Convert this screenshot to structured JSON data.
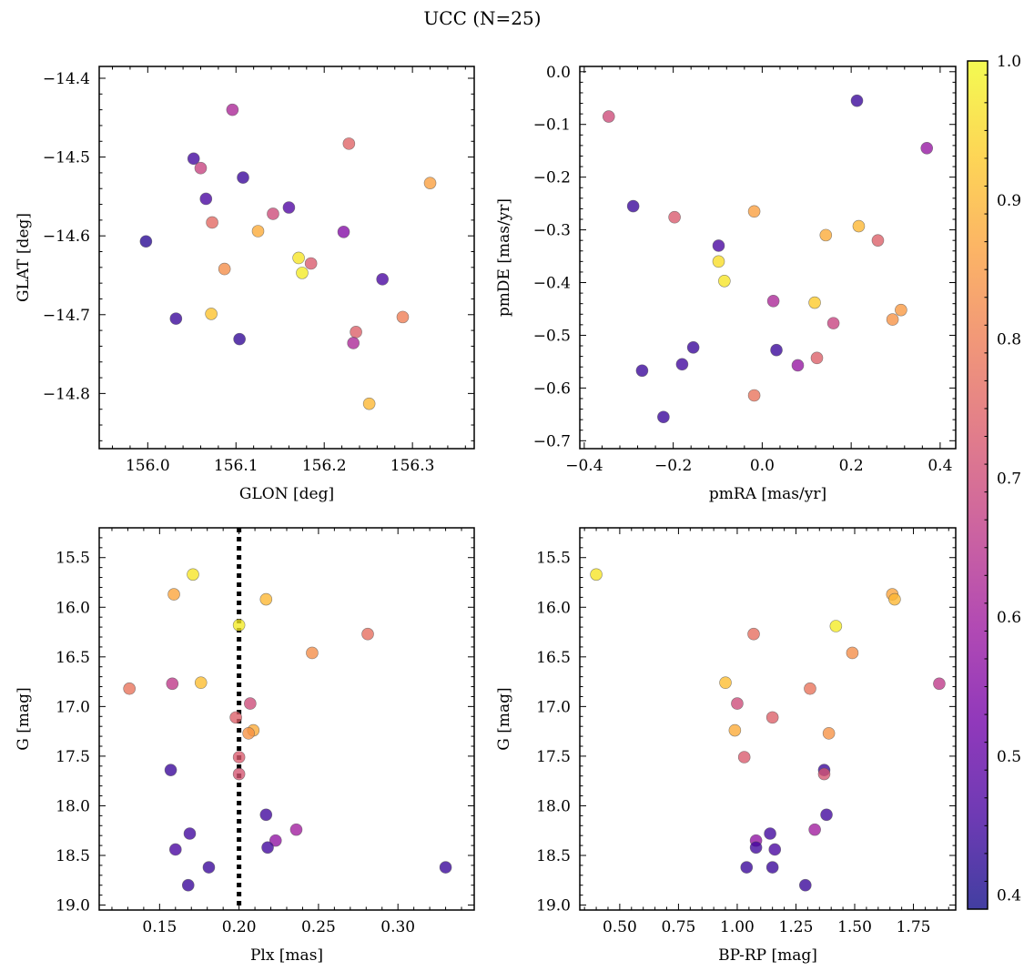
{
  "figure_title": "UCC (N=25)",
  "colormap": {
    "name": "plasma",
    "stops": [
      "#0d0887",
      "#46039f",
      "#7201a8",
      "#9c179e",
      "#bd3786",
      "#d8576b",
      "#ed7953",
      "#fb9f3a",
      "#fdca26",
      "#f0f921"
    ],
    "point_alpha": 0.78,
    "point_edge_color": "#555555"
  },
  "colorbar": {
    "range": [
      0.39,
      1.0
    ],
    "ticks": [
      0.4,
      0.5,
      0.6,
      0.7,
      0.8,
      0.9,
      1.0
    ],
    "tick_labels": [
      "0.4",
      "0.5",
      "0.6",
      "0.7",
      "0.8",
      "0.9",
      "1.0"
    ]
  },
  "chart_data": [
    {
      "type": "scatter",
      "id": "glon-glat",
      "xlabel": "GLON [deg]",
      "ylabel": "GLAT [deg]",
      "xlim": [
        155.945,
        156.37
      ],
      "ylim": [
        -14.87,
        -14.385
      ],
      "xticks": [
        156.0,
        156.1,
        156.2,
        156.3
      ],
      "xtick_labels": [
        "156.0",
        "156.1",
        "156.2",
        "156.3"
      ],
      "yticks": [
        -14.4,
        -14.5,
        -14.6,
        -14.7,
        -14.8
      ],
      "ytick_labels": [
        "−14.4",
        "−14.5",
        "−14.6",
        "−14.7",
        "−14.8"
      ],
      "points": [
        {
          "x": 156.096,
          "y": -14.44,
          "c": 0.62
        },
        {
          "x": 156.228,
          "y": -14.483,
          "c": 0.75
        },
        {
          "x": 156.052,
          "y": -14.502,
          "c": 0.45
        },
        {
          "x": 156.06,
          "y": -14.514,
          "c": 0.68
        },
        {
          "x": 156.108,
          "y": -14.526,
          "c": 0.44
        },
        {
          "x": 156.32,
          "y": -14.533,
          "c": 0.86
        },
        {
          "x": 156.066,
          "y": -14.553,
          "c": 0.46
        },
        {
          "x": 156.16,
          "y": -14.564,
          "c": 0.47
        },
        {
          "x": 156.142,
          "y": -14.572,
          "c": 0.7
        },
        {
          "x": 156.073,
          "y": -14.583,
          "c": 0.76
        },
        {
          "x": 156.125,
          "y": -14.594,
          "c": 0.88
        },
        {
          "x": 156.222,
          "y": -14.595,
          "c": 0.55
        },
        {
          "x": 155.998,
          "y": -14.607,
          "c": 0.42
        },
        {
          "x": 156.171,
          "y": -14.628,
          "c": 0.97
        },
        {
          "x": 156.185,
          "y": -14.635,
          "c": 0.73
        },
        {
          "x": 156.087,
          "y": -14.642,
          "c": 0.83
        },
        {
          "x": 156.175,
          "y": -14.647,
          "c": 0.98
        },
        {
          "x": 156.266,
          "y": -14.655,
          "c": 0.46
        },
        {
          "x": 156.072,
          "y": -14.699,
          "c": 0.92
        },
        {
          "x": 156.289,
          "y": -14.703,
          "c": 0.8
        },
        {
          "x": 156.032,
          "y": -14.705,
          "c": 0.44
        },
        {
          "x": 156.236,
          "y": -14.722,
          "c": 0.74
        },
        {
          "x": 156.104,
          "y": -14.731,
          "c": 0.43
        },
        {
          "x": 156.233,
          "y": -14.736,
          "c": 0.62
        },
        {
          "x": 156.251,
          "y": -14.813,
          "c": 0.9
        }
      ]
    },
    {
      "type": "scatter",
      "id": "pmra-pmde",
      "xlabel": "pmRA [mas/yr]",
      "ylabel": "pmDE [mas/yr]",
      "xlim": [
        -0.41,
        0.435
      ],
      "ylim": [
        -0.715,
        0.01
      ],
      "xticks": [
        -0.4,
        -0.2,
        0.0,
        0.2,
        0.4
      ],
      "xtick_labels": [
        "−0.4",
        "−0.2",
        "0.0",
        "0.2",
        "0.4"
      ],
      "yticks": [
        0.0,
        -0.1,
        -0.2,
        -0.3,
        -0.4,
        -0.5,
        -0.6,
        -0.7
      ],
      "ytick_labels": [
        "0.0",
        "−0.1",
        "−0.2",
        "−0.3",
        "−0.4",
        "−0.5",
        "−0.6",
        "−0.7"
      ],
      "points": [
        {
          "x": 0.213,
          "y": -0.055,
          "c": 0.44
        },
        {
          "x": -0.345,
          "y": -0.085,
          "c": 0.7
        },
        {
          "x": 0.37,
          "y": -0.145,
          "c": 0.58
        },
        {
          "x": -0.29,
          "y": -0.255,
          "c": 0.44
        },
        {
          "x": -0.018,
          "y": -0.265,
          "c": 0.86
        },
        {
          "x": -0.197,
          "y": -0.276,
          "c": 0.73
        },
        {
          "x": 0.217,
          "y": -0.293,
          "c": 0.9
        },
        {
          "x": 0.143,
          "y": -0.31,
          "c": 0.88
        },
        {
          "x": 0.26,
          "y": -0.32,
          "c": 0.74
        },
        {
          "x": -0.098,
          "y": -0.33,
          "c": 0.46
        },
        {
          "x": -0.098,
          "y": -0.36,
          "c": 0.96
        },
        {
          "x": -0.085,
          "y": -0.397,
          "c": 0.97
        },
        {
          "x": 0.025,
          "y": -0.435,
          "c": 0.62
        },
        {
          "x": 0.118,
          "y": -0.438,
          "c": 0.93
        },
        {
          "x": 0.312,
          "y": -0.452,
          "c": 0.85
        },
        {
          "x": 0.293,
          "y": -0.47,
          "c": 0.84
        },
        {
          "x": 0.16,
          "y": -0.477,
          "c": 0.68
        },
        {
          "x": -0.155,
          "y": -0.523,
          "c": 0.44
        },
        {
          "x": 0.032,
          "y": -0.528,
          "c": 0.44
        },
        {
          "x": 0.123,
          "y": -0.543,
          "c": 0.74
        },
        {
          "x": -0.18,
          "y": -0.555,
          "c": 0.45
        },
        {
          "x": 0.08,
          "y": -0.557,
          "c": 0.58
        },
        {
          "x": -0.27,
          "y": -0.567,
          "c": 0.44
        },
        {
          "x": -0.018,
          "y": -0.614,
          "c": 0.78
        },
        {
          "x": -0.222,
          "y": -0.655,
          "c": 0.44
        }
      ]
    },
    {
      "type": "scatter",
      "id": "plx-g",
      "xlabel": "Plx [mas]",
      "ylabel": "G [mag]",
      "xlim": [
        0.112,
        0.348
      ],
      "ylim": [
        19.05,
        15.2
      ],
      "y_inverted": true,
      "vline_x": 0.2,
      "vline_style": "dotted",
      "xticks": [
        0.15,
        0.2,
        0.25,
        0.3
      ],
      "xtick_labels": [
        "0.15",
        "0.20",
        "0.25",
        "0.30"
      ],
      "yticks": [
        15.5,
        16.0,
        16.5,
        17.0,
        17.5,
        18.0,
        18.5,
        19.0
      ],
      "ytick_labels": [
        "15.5",
        "16.0",
        "16.5",
        "17.0",
        "17.5",
        "18.0",
        "18.5",
        "19.0"
      ],
      "points": [
        {
          "x": 0.171,
          "y": 15.67,
          "c": 0.97
        },
        {
          "x": 0.159,
          "y": 15.87,
          "c": 0.87
        },
        {
          "x": 0.217,
          "y": 15.92,
          "c": 0.9
        },
        {
          "x": 0.2,
          "y": 16.18,
          "c": 0.98
        },
        {
          "x": 0.281,
          "y": 16.27,
          "c": 0.77
        },
        {
          "x": 0.246,
          "y": 16.46,
          "c": 0.83
        },
        {
          "x": 0.158,
          "y": 16.77,
          "c": 0.66
        },
        {
          "x": 0.176,
          "y": 16.76,
          "c": 0.91
        },
        {
          "x": 0.131,
          "y": 16.82,
          "c": 0.78
        },
        {
          "x": 0.207,
          "y": 16.97,
          "c": 0.7
        },
        {
          "x": 0.198,
          "y": 17.11,
          "c": 0.74
        },
        {
          "x": 0.209,
          "y": 17.24,
          "c": 0.88
        },
        {
          "x": 0.206,
          "y": 17.27,
          "c": 0.84
        },
        {
          "x": 0.2,
          "y": 17.51,
          "c": 0.73
        },
        {
          "x": 0.157,
          "y": 17.64,
          "c": 0.44
        },
        {
          "x": 0.2,
          "y": 17.68,
          "c": 0.72
        },
        {
          "x": 0.217,
          "y": 18.09,
          "c": 0.45
        },
        {
          "x": 0.236,
          "y": 18.24,
          "c": 0.6
        },
        {
          "x": 0.169,
          "y": 18.28,
          "c": 0.45
        },
        {
          "x": 0.223,
          "y": 18.35,
          "c": 0.57
        },
        {
          "x": 0.218,
          "y": 18.42,
          "c": 0.45
        },
        {
          "x": 0.16,
          "y": 18.44,
          "c": 0.46
        },
        {
          "x": 0.181,
          "y": 18.62,
          "c": 0.44
        },
        {
          "x": 0.33,
          "y": 18.62,
          "c": 0.44
        },
        {
          "x": 0.168,
          "y": 18.8,
          "c": 0.44
        }
      ]
    },
    {
      "type": "scatter",
      "id": "bprp-g",
      "xlabel": "BP-RP [mag]",
      "ylabel": "G [mag]",
      "xlim": [
        0.33,
        1.93
      ],
      "ylim": [
        19.05,
        15.2
      ],
      "y_inverted": true,
      "xticks": [
        0.5,
        0.75,
        1.0,
        1.25,
        1.5,
        1.75
      ],
      "xtick_labels": [
        "0.50",
        "0.75",
        "1.00",
        "1.25",
        "1.50",
        "1.75"
      ],
      "yticks": [
        15.5,
        16.0,
        16.5,
        17.0,
        17.5,
        18.0,
        18.5,
        19.0
      ],
      "ytick_labels": [
        "15.5",
        "16.0",
        "16.5",
        "17.0",
        "17.5",
        "18.0",
        "18.5",
        "19.0"
      ],
      "points": [
        {
          "x": 0.4,
          "y": 15.67,
          "c": 0.97
        },
        {
          "x": 1.66,
          "y": 15.87,
          "c": 0.87
        },
        {
          "x": 1.67,
          "y": 15.92,
          "c": 0.9
        },
        {
          "x": 1.42,
          "y": 16.19,
          "c": 0.98
        },
        {
          "x": 1.07,
          "y": 16.27,
          "c": 0.77
        },
        {
          "x": 1.49,
          "y": 16.46,
          "c": 0.83
        },
        {
          "x": 0.95,
          "y": 16.76,
          "c": 0.91
        },
        {
          "x": 1.86,
          "y": 16.77,
          "c": 0.66
        },
        {
          "x": 1.31,
          "y": 16.82,
          "c": 0.78
        },
        {
          "x": 1.0,
          "y": 16.97,
          "c": 0.7
        },
        {
          "x": 1.15,
          "y": 17.11,
          "c": 0.74
        },
        {
          "x": 0.99,
          "y": 17.24,
          "c": 0.88
        },
        {
          "x": 1.39,
          "y": 17.27,
          "c": 0.84
        },
        {
          "x": 1.03,
          "y": 17.51,
          "c": 0.73
        },
        {
          "x": 1.37,
          "y": 17.64,
          "c": 0.44
        },
        {
          "x": 1.37,
          "y": 17.68,
          "c": 0.72
        },
        {
          "x": 1.38,
          "y": 18.09,
          "c": 0.45
        },
        {
          "x": 1.33,
          "y": 18.24,
          "c": 0.6
        },
        {
          "x": 1.14,
          "y": 18.28,
          "c": 0.45
        },
        {
          "x": 1.08,
          "y": 18.35,
          "c": 0.57
        },
        {
          "x": 1.08,
          "y": 18.42,
          "c": 0.45
        },
        {
          "x": 1.16,
          "y": 18.44,
          "c": 0.46
        },
        {
          "x": 1.04,
          "y": 18.62,
          "c": 0.44
        },
        {
          "x": 1.15,
          "y": 18.62,
          "c": 0.44
        },
        {
          "x": 1.29,
          "y": 18.8,
          "c": 0.44
        }
      ]
    }
  ]
}
